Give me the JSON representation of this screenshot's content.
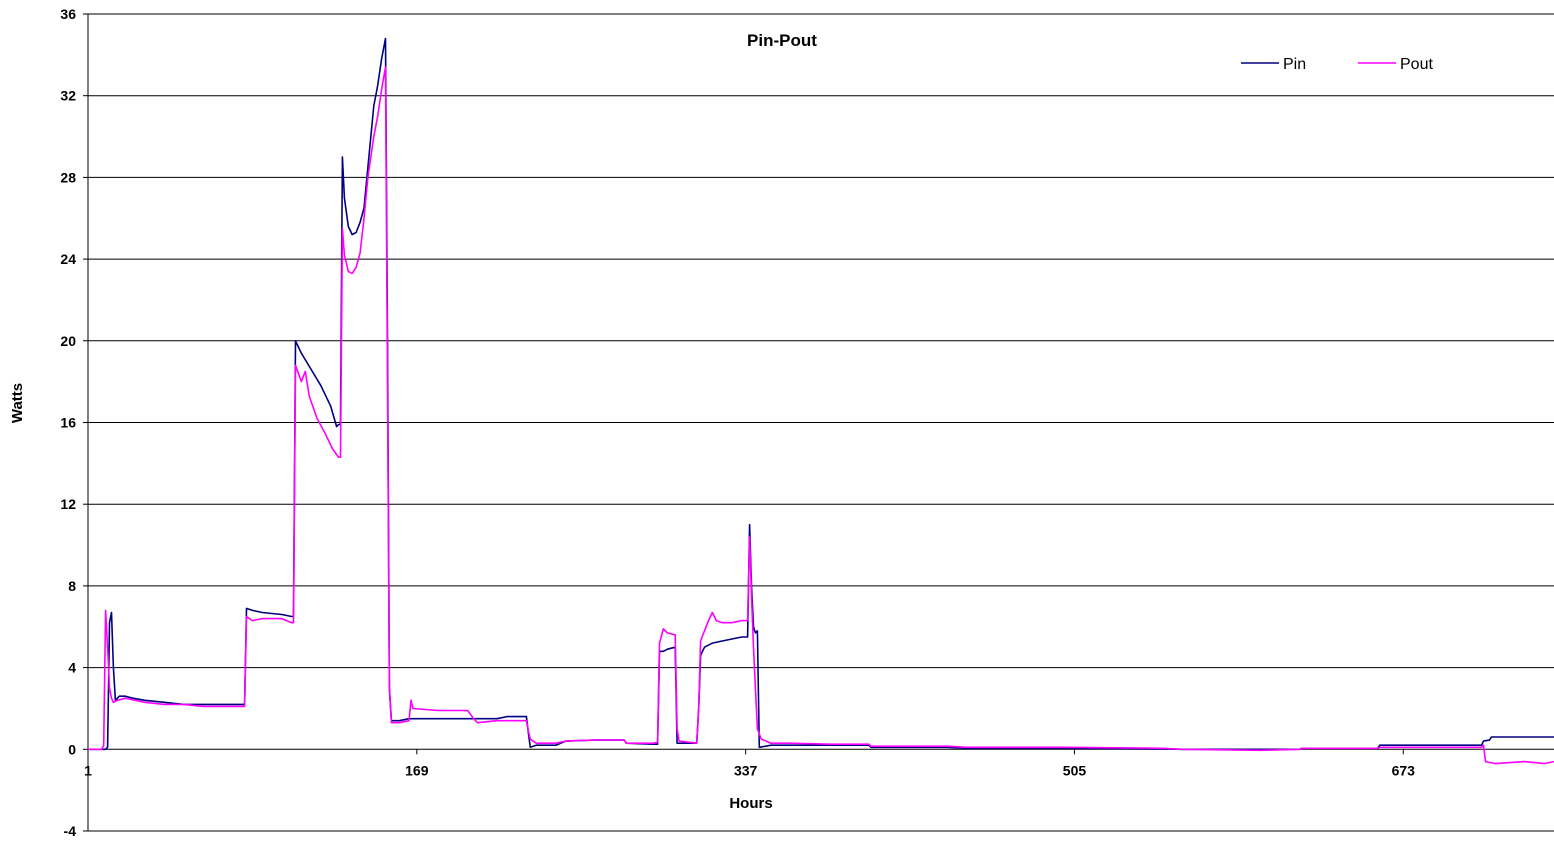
{
  "chart_data": {
    "type": "line",
    "title": "Pin-Pout",
    "xlabel": "Hours",
    "ylabel": "Watts",
    "xlim": [
      1,
      750
    ],
    "ylim": [
      -4,
      36
    ],
    "yticks": [
      -4,
      0,
      4,
      8,
      12,
      16,
      20,
      24,
      28,
      32,
      36
    ],
    "xticks": [
      1,
      169,
      337,
      505,
      673
    ],
    "grid": true,
    "legend_position": "top-right",
    "series": [
      {
        "name": "Pin",
        "color": "#000080",
        "points": [
          [
            1,
            0
          ],
          [
            10,
            0
          ],
          [
            11,
            0.1
          ],
          [
            12,
            6.2
          ],
          [
            13,
            6.7
          ],
          [
            14,
            4
          ],
          [
            15,
            2.4
          ],
          [
            17,
            2.6
          ],
          [
            20,
            2.6
          ],
          [
            24,
            2.5
          ],
          [
            30,
            2.4
          ],
          [
            40,
            2.3
          ],
          [
            50,
            2.2
          ],
          [
            60,
            2.2
          ],
          [
            80,
            2.2
          ],
          [
            81,
            2.2
          ],
          [
            82,
            6.9
          ],
          [
            85,
            6.8
          ],
          [
            90,
            6.7
          ],
          [
            100,
            6.6
          ],
          [
            105,
            6.5
          ],
          [
            106,
            6.5
          ],
          [
            107,
            20
          ],
          [
            110,
            19.4
          ],
          [
            115,
            18.6
          ],
          [
            120,
            17.8
          ],
          [
            125,
            16.8
          ],
          [
            128,
            15.8
          ],
          [
            129,
            15.9
          ],
          [
            130,
            15.9
          ],
          [
            131,
            29
          ],
          [
            132,
            27
          ],
          [
            134,
            25.6
          ],
          [
            136,
            25.2
          ],
          [
            138,
            25.3
          ],
          [
            140,
            25.8
          ],
          [
            142,
            26.5
          ],
          [
            144,
            28.5
          ],
          [
            147,
            31.5
          ],
          [
            149,
            32.5
          ],
          [
            151,
            33.8
          ],
          [
            153,
            34.8
          ],
          [
            154,
            20
          ],
          [
            155,
            3
          ],
          [
            156,
            1.4
          ],
          [
            160,
            1.4
          ],
          [
            165,
            1.5
          ],
          [
            170,
            1.5
          ],
          [
            200,
            1.5
          ],
          [
            210,
            1.5
          ],
          [
            215,
            1.6
          ],
          [
            225,
            1.6
          ],
          [
            226,
            0.8
          ],
          [
            227,
            0.1
          ],
          [
            230,
            0.2
          ],
          [
            240,
            0.2
          ],
          [
            245,
            0.4
          ],
          [
            260,
            0.45
          ],
          [
            275,
            0.45
          ],
          [
            276,
            0.3
          ],
          [
            290,
            0.25
          ],
          [
            292,
            0.25
          ],
          [
            293,
            4.8
          ],
          [
            295,
            4.8
          ],
          [
            297,
            4.9
          ],
          [
            301,
            5
          ],
          [
            302,
            0.3
          ],
          [
            312,
            0.3
          ],
          [
            313,
            2
          ],
          [
            314,
            4.6
          ],
          [
            316,
            5
          ],
          [
            320,
            5.2
          ],
          [
            325,
            5.3
          ],
          [
            330,
            5.4
          ],
          [
            335,
            5.5
          ],
          [
            338,
            5.5
          ],
          [
            339,
            11
          ],
          [
            340,
            8
          ],
          [
            341,
            6
          ],
          [
            342,
            5.7
          ],
          [
            343,
            5.8
          ],
          [
            344,
            0.1
          ],
          [
            350,
            0.2
          ],
          [
            360,
            0.2
          ],
          [
            380,
            0.2
          ],
          [
            400,
            0.2
          ],
          [
            401,
            0.1
          ],
          [
            440,
            0.1
          ],
          [
            450,
            0.05
          ],
          [
            500,
            0.05
          ],
          [
            550,
            0.02
          ],
          [
            560,
            0
          ],
          [
            600,
            0
          ],
          [
            620,
            0
          ],
          [
            621,
            0.05
          ],
          [
            660,
            0.05
          ],
          [
            661,
            0.2
          ],
          [
            700,
            0.2
          ],
          [
            713,
            0.2
          ],
          [
            714,
            0.4
          ],
          [
            717,
            0.45
          ],
          [
            718,
            0.6
          ],
          [
            720,
            0.6
          ],
          [
            750,
            0.6
          ]
        ]
      },
      {
        "name": "Pout",
        "color": "#FF00FF",
        "points": [
          [
            1,
            0
          ],
          [
            8,
            0
          ],
          [
            9,
            0.2
          ],
          [
            10,
            6.8
          ],
          [
            11,
            5
          ],
          [
            12,
            3
          ],
          [
            13,
            2.5
          ],
          [
            14,
            2.3
          ],
          [
            16,
            2.4
          ],
          [
            20,
            2.5
          ],
          [
            30,
            2.3
          ],
          [
            40,
            2.2
          ],
          [
            50,
            2.2
          ],
          [
            60,
            2.1
          ],
          [
            80,
            2.1
          ],
          [
            81,
            2.1
          ],
          [
            82,
            6.5
          ],
          [
            85,
            6.3
          ],
          [
            90,
            6.4
          ],
          [
            100,
            6.4
          ],
          [
            105,
            6.2
          ],
          [
            106,
            6.2
          ],
          [
            107,
            18.8
          ],
          [
            110,
            18
          ],
          [
            112,
            18.5
          ],
          [
            114,
            17.3
          ],
          [
            118,
            16.2
          ],
          [
            122,
            15.5
          ],
          [
            126,
            14.7
          ],
          [
            129,
            14.3
          ],
          [
            130,
            14.3
          ],
          [
            131,
            25.5
          ],
          [
            132,
            24.2
          ],
          [
            134,
            23.4
          ],
          [
            136,
            23.3
          ],
          [
            138,
            23.6
          ],
          [
            140,
            24.3
          ],
          [
            142,
            26
          ],
          [
            144,
            28
          ],
          [
            147,
            30
          ],
          [
            149,
            31
          ],
          [
            151,
            32.3
          ],
          [
            153,
            33.4
          ],
          [
            154,
            18
          ],
          [
            155,
            3
          ],
          [
            156,
            1.3
          ],
          [
            160,
            1.3
          ],
          [
            165,
            1.4
          ],
          [
            166,
            2.4
          ],
          [
            167,
            2
          ],
          [
            180,
            1.9
          ],
          [
            195,
            1.9
          ],
          [
            198,
            1.5
          ],
          [
            200,
            1.3
          ],
          [
            210,
            1.4
          ],
          [
            225,
            1.4
          ],
          [
            226,
            0.9
          ],
          [
            227,
            0.5
          ],
          [
            230,
            0.3
          ],
          [
            240,
            0.3
          ],
          [
            245,
            0.4
          ],
          [
            260,
            0.45
          ],
          [
            275,
            0.45
          ],
          [
            276,
            0.3
          ],
          [
            290,
            0.3
          ],
          [
            292,
            0.35
          ],
          [
            293,
            5.2
          ],
          [
            295,
            5.9
          ],
          [
            297,
            5.7
          ],
          [
            301,
            5.6
          ],
          [
            302,
            1
          ],
          [
            303,
            0.4
          ],
          [
            312,
            0.3
          ],
          [
            313,
            2
          ],
          [
            314,
            5.3
          ],
          [
            316,
            5.8
          ],
          [
            318,
            6.3
          ],
          [
            320,
            6.7
          ],
          [
            322,
            6.3
          ],
          [
            325,
            6.2
          ],
          [
            330,
            6.2
          ],
          [
            335,
            6.3
          ],
          [
            338,
            6.3
          ],
          [
            339,
            10.4
          ],
          [
            340,
            7.5
          ],
          [
            341,
            5
          ],
          [
            342,
            3
          ],
          [
            343,
            1
          ],
          [
            345,
            0.5
          ],
          [
            350,
            0.3
          ],
          [
            360,
            0.3
          ],
          [
            380,
            0.25
          ],
          [
            400,
            0.25
          ],
          [
            401,
            0.15
          ],
          [
            440,
            0.15
          ],
          [
            450,
            0.1
          ],
          [
            500,
            0.1
          ],
          [
            550,
            0.05
          ],
          [
            560,
            0
          ],
          [
            600,
            -0.05
          ],
          [
            620,
            0
          ],
          [
            621,
            0.05
          ],
          [
            660,
            0.05
          ],
          [
            661,
            0.1
          ],
          [
            700,
            0.1
          ],
          [
            713,
            0.1
          ],
          [
            714,
            0.2
          ],
          [
            715,
            -0.6
          ],
          [
            720,
            -0.7
          ],
          [
            735,
            -0.6
          ],
          [
            745,
            -0.7
          ],
          [
            750,
            -0.6
          ]
        ]
      }
    ]
  }
}
